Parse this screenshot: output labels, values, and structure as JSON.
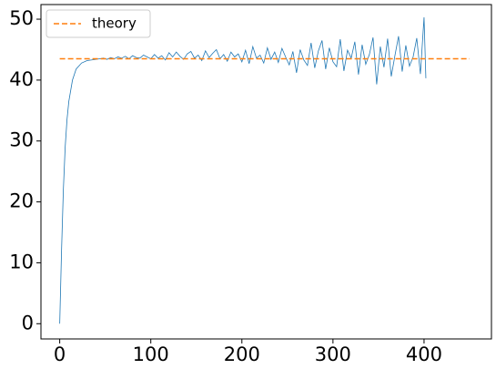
{
  "chart_data": {
    "type": "line",
    "series": [
      {
        "color": "#1f77b4",
        "x": [
          0,
          2,
          4,
          6,
          8,
          10,
          14,
          18,
          24,
          30,
          40,
          44,
          48,
          52,
          56,
          60,
          64,
          68,
          72,
          76,
          80,
          84,
          88,
          92,
          96,
          100,
          104,
          108,
          112,
          116,
          120,
          124,
          128,
          132,
          136,
          140,
          144,
          148,
          152,
          156,
          160,
          164,
          168,
          172,
          176,
          180,
          184,
          188,
          192,
          196,
          200,
          204,
          208,
          212,
          216,
          220,
          224,
          228,
          232,
          236,
          240,
          244,
          248,
          252,
          256,
          260,
          264,
          268,
          272,
          276,
          280,
          284,
          288,
          292,
          296,
          300,
          304,
          308,
          312,
          316,
          320,
          324,
          328,
          332,
          336,
          340,
          344,
          348,
          352,
          356,
          360,
          364,
          368,
          372,
          376,
          380,
          384,
          388,
          392,
          396,
          400,
          402
        ],
        "values": [
          0,
          12,
          22,
          29,
          33.5,
          36.5,
          40,
          41.8,
          42.8,
          43.2,
          43.4,
          43.5,
          43.6,
          43.4,
          43.7,
          43.5,
          43.8,
          43.6,
          43.9,
          43.5,
          44.0,
          43.7,
          43.6,
          44.1,
          43.8,
          43.5,
          44.2,
          43.6,
          44.0,
          43.3,
          44.5,
          43.8,
          44.6,
          43.9,
          43.4,
          44.3,
          44.7,
          43.6,
          44.1,
          43.2,
          44.8,
          43.7,
          44.4,
          45.0,
          43.5,
          44.2,
          43.1,
          44.6,
          43.8,
          44.3,
          43.0,
          44.9,
          42.7,
          45.5,
          43.6,
          44.1,
          42.8,
          45.3,
          43.4,
          44.6,
          42.9,
          45.2,
          43.8,
          42.5,
          44.7,
          41.2,
          45.0,
          43.3,
          42.4,
          46.1,
          42.0,
          44.8,
          46.5,
          41.8,
          45.3,
          43.0,
          42.2,
          46.7,
          41.5,
          44.9,
          43.6,
          46.3,
          40.9,
          45.8,
          42.6,
          44.2,
          47.0,
          39.3,
          45.5,
          42.1,
          46.8,
          40.6,
          44.0,
          47.2,
          41.4,
          45.7,
          42.3,
          43.8,
          46.9,
          41.0,
          50.3,
          40.3
        ]
      },
      {
        "name": "theory",
        "color": "#ff7f0e",
        "linestyle": "dashed",
        "x": [
          0,
          450
        ],
        "values": [
          43.5,
          43.5
        ]
      }
    ],
    "xlim": [
      -20.6,
      474
    ],
    "ylim": [
      -2.5,
      52.4
    ],
    "xticks": [
      0,
      100,
      200,
      300,
      400
    ],
    "yticks": [
      0,
      10,
      20,
      30,
      40,
      50
    ],
    "legend": "upper left"
  }
}
